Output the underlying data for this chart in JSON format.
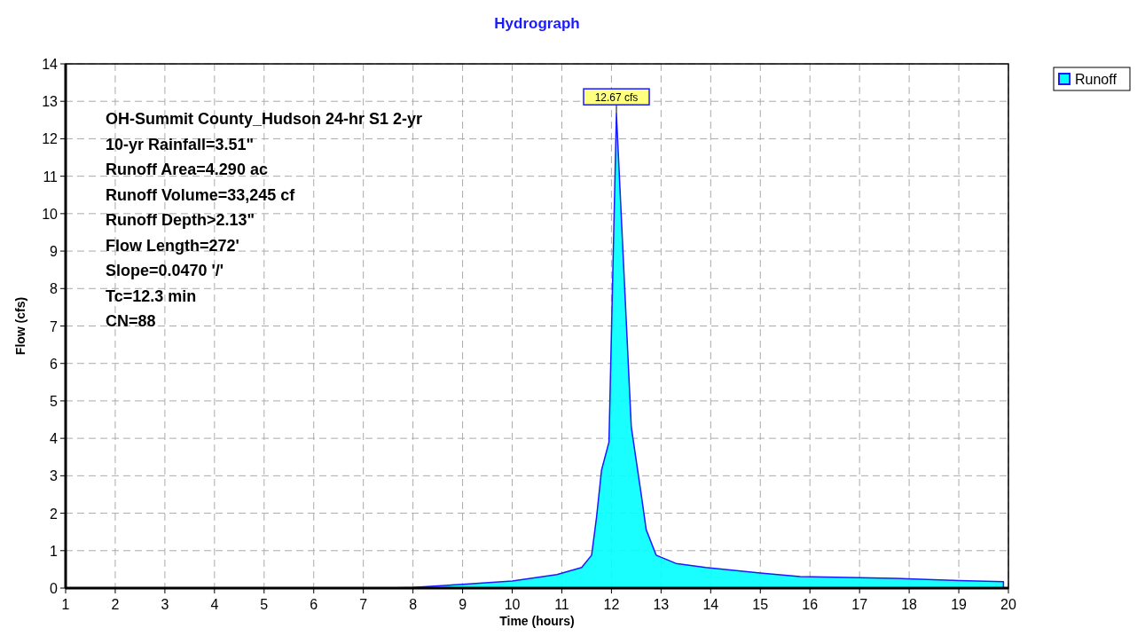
{
  "chart_data": {
    "type": "area",
    "title": "Hydrograph",
    "xlabel": "Time  (hours)",
    "ylabel": "Flow  (cfs)",
    "x": [
      1,
      7.5,
      8,
      9,
      10,
      10.9,
      11.4,
      11.6,
      11.7,
      11.8,
      11.95,
      12.1,
      12.4,
      12.6,
      12.7,
      12.9,
      13.3,
      13.9,
      15,
      15.8,
      17,
      17.7,
      19,
      19.9
    ],
    "series": [
      {
        "name": "Runoff",
        "color": "#00ffff",
        "values": [
          0,
          0,
          0.02,
          0.1,
          0.19,
          0.36,
          0.55,
          0.88,
          1.9,
          3.15,
          3.9,
          12.67,
          4.3,
          2.5,
          1.56,
          0.88,
          0.66,
          0.55,
          0.4,
          0.31,
          0.28,
          0.26,
          0.2,
          0.17
        ]
      }
    ],
    "xlim": [
      1,
      20
    ],
    "xticks": [
      1,
      2,
      3,
      4,
      5,
      6,
      7,
      8,
      9,
      10,
      11,
      12,
      13,
      14,
      15,
      16,
      17,
      18,
      19,
      20
    ],
    "ylim": [
      0,
      14
    ],
    "yticks": [
      0,
      1,
      2,
      3,
      4,
      5,
      6,
      7,
      8,
      9,
      10,
      11,
      12,
      13,
      14
    ],
    "grid": true,
    "legend": "top right",
    "marker": "none",
    "annotations": [
      "OH-Summit County_Hudson 24-hr S1 2-yr",
      "10-yr Rainfall=3.51\"",
      "Runoff Area=4.290 ac",
      "Runoff Volume=33,245 cf",
      "Runoff Depth>2.13\"",
      "Flow Length=272'",
      "Slope=0.0470 '/'",
      "Tc=12.3 min",
      "CN=88",
      {
        "text": "12.67 cfs",
        "x": 12.1,
        "y": 12.67
      }
    ]
  }
}
